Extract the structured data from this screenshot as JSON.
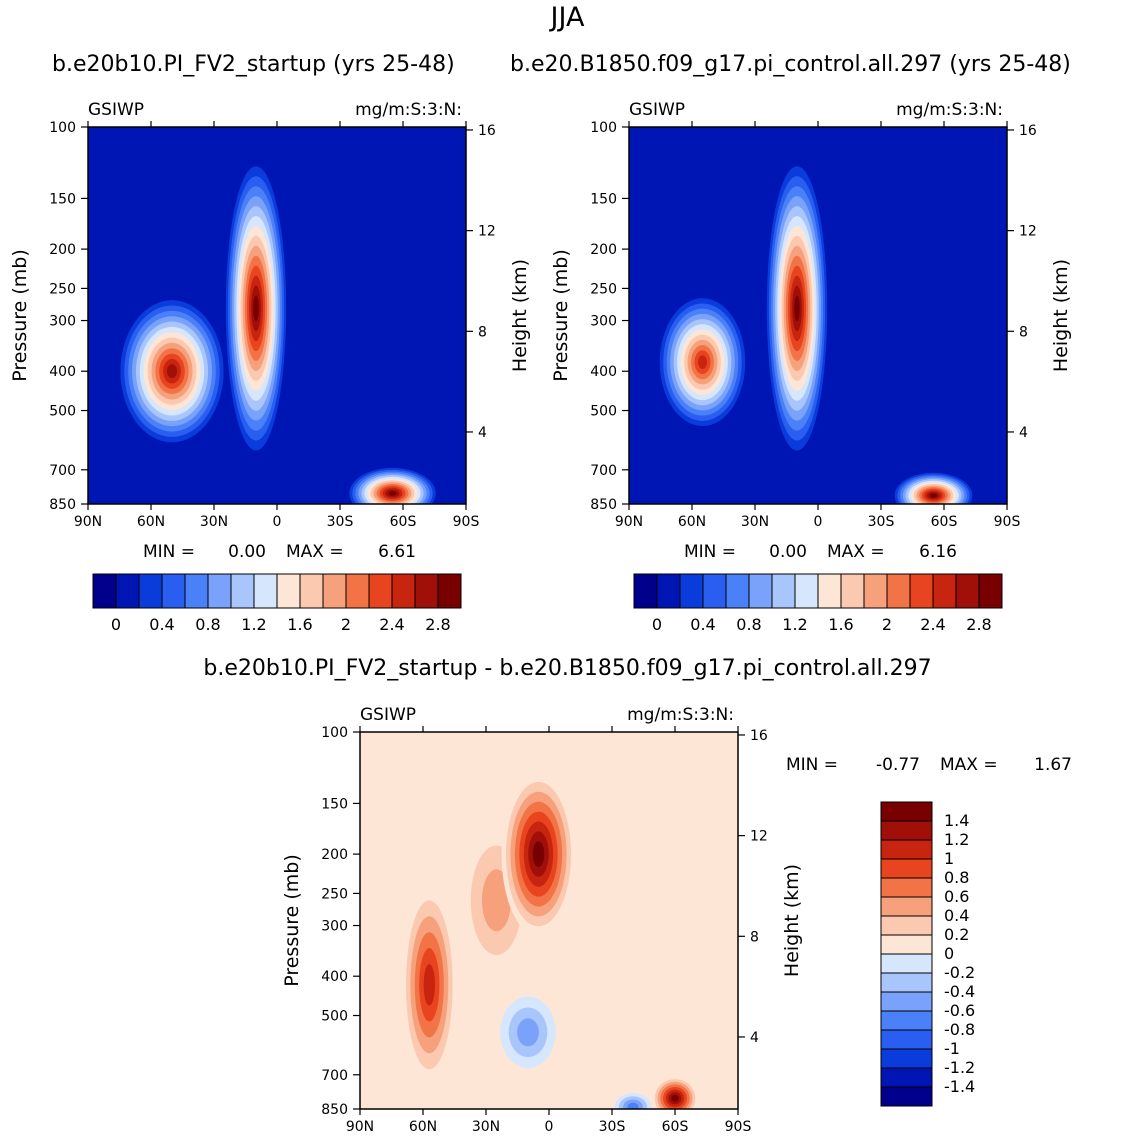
{
  "figure": {
    "title": "JJA",
    "subtitle_left": "b.e20b10.PI_FV2_startup (yrs 25-48)",
    "subtitle_right": "b.e20.B1850.f09_g17.pi_control.all.297 (yrs 25-48)",
    "diff_title": "b.e20b10.PI_FV2_startup - b.e20.B1850.f09_g17.pi_control.all.297"
  },
  "chart_data": [
    {
      "type": "heatmap",
      "name": "panel-left",
      "title": "b.e20b10.PI_FV2_startup (yrs 25-48)",
      "variable": "GSIWP",
      "units": "mg/m:S:3:N:",
      "xlabel": "",
      "ylabel": "Pressure (mb)",
      "ylabel_right": "Height (km)",
      "x_ticks": [
        "90N",
        "60N",
        "30N",
        "0",
        "30S",
        "60S",
        "90S"
      ],
      "y_ticks": [
        "100",
        "150",
        "200",
        "250",
        "300",
        "400",
        "500",
        "700",
        "850"
      ],
      "y_ticks_right": [
        "16",
        "12",
        "8",
        "4"
      ],
      "min_label": "MIN =",
      "min_value": "0.00",
      "max_label": "MAX =",
      "max_value": "6.61",
      "colorbar_ticks": [
        "0",
        "0.4",
        "0.8",
        "1.2",
        "1.6",
        "2",
        "2.4",
        "2.8"
      ],
      "blobs": [
        {
          "lat": 50,
          "p": 400,
          "spread_lat": 12,
          "spread_p": 150,
          "value": 2.8
        },
        {
          "lat": 10,
          "p": 280,
          "spread_lat": 7,
          "spread_p": 200,
          "value": 6.61
        },
        {
          "lat": -55,
          "p": 800,
          "spread_lat": 10,
          "spread_p": 120,
          "value": 3.0
        }
      ]
    },
    {
      "type": "heatmap",
      "name": "panel-right",
      "title": "b.e20.B1850.f09_g17.pi_control.all.297 (yrs 25-48)",
      "variable": "GSIWP",
      "units": "mg/m:S:3:N:",
      "xlabel": "",
      "ylabel": "Pressure (mb)",
      "ylabel_right": "Height (km)",
      "x_ticks": [
        "90N",
        "60N",
        "30N",
        "0",
        "30S",
        "60S",
        "90S"
      ],
      "y_ticks": [
        "100",
        "150",
        "200",
        "250",
        "300",
        "400",
        "500",
        "700",
        "850"
      ],
      "y_ticks_right": [
        "16",
        "12",
        "8",
        "4"
      ],
      "min_label": "MIN =",
      "min_value": "0.00",
      "max_label": "MAX =",
      "max_value": "6.16",
      "colorbar_ticks": [
        "0",
        "0.4",
        "0.8",
        "1.2",
        "1.6",
        "2",
        "2.4",
        "2.8"
      ],
      "blobs": [
        {
          "lat": 55,
          "p": 380,
          "spread_lat": 10,
          "spread_p": 130,
          "value": 2.6
        },
        {
          "lat": 10,
          "p": 280,
          "spread_lat": 7,
          "spread_p": 200,
          "value": 6.16
        },
        {
          "lat": -55,
          "p": 810,
          "spread_lat": 9,
          "spread_p": 110,
          "value": 3.0
        }
      ]
    },
    {
      "type": "heatmap",
      "name": "panel-diff",
      "title": "b.e20b10.PI_FV2_startup - b.e20.B1850.f09_g17.pi_control.all.297",
      "variable": "GSIWP",
      "units": "mg/m:S:3:N:",
      "xlabel": "",
      "ylabel": "Pressure (mb)",
      "ylabel_right": "Height (km)",
      "x_ticks": [
        "90N",
        "60N",
        "30N",
        "0",
        "30S",
        "60S",
        "90S"
      ],
      "y_ticks": [
        "100",
        "150",
        "200",
        "250",
        "300",
        "400",
        "500",
        "700",
        "850"
      ],
      "y_ticks_right": [
        "16",
        "12",
        "8",
        "4"
      ],
      "min_label": "MIN =",
      "min_value": "-0.77",
      "max_label": "MAX =",
      "max_value": "1.67",
      "colorbar_ticks": [
        "1.4",
        "1.2",
        "1",
        "0.8",
        "0.6",
        "0.4",
        "0.2",
        "0",
        "-0.2",
        "-0.4",
        "-0.6",
        "-0.8",
        "-1",
        "-1.2",
        "-1.4"
      ],
      "blobs": [
        {
          "lat": 5,
          "p": 200,
          "spread_lat": 8,
          "spread_p": 80,
          "value": 1.67
        },
        {
          "lat": 57,
          "p": 420,
          "spread_lat": 6,
          "spread_p": 200,
          "value": 1.1
        },
        {
          "lat": -60,
          "p": 800,
          "spread_lat": 5,
          "spread_p": 90,
          "value": 1.5
        },
        {
          "lat": 25,
          "p": 260,
          "spread_lat": 8,
          "spread_p": 100,
          "value": 0.5
        },
        {
          "lat": -40,
          "p": 840,
          "spread_lat": 4,
          "spread_p": 60,
          "value": -0.77
        },
        {
          "lat": 10,
          "p": 550,
          "spread_lat": 6,
          "spread_p": 100,
          "value": -0.5
        }
      ]
    }
  ],
  "colors": {
    "seq_palette": [
      "#00008c",
      "#0016b4",
      "#0a3cdc",
      "#2a5ef0",
      "#4a80f8",
      "#7aa2fa",
      "#a9c6fc",
      "#d6e6fd",
      "#fde6d6",
      "#fbc8b0",
      "#f7a07c",
      "#f27346",
      "#e8441f",
      "#c82510",
      "#a01008",
      "#780000"
    ],
    "div_palette": [
      "#00008c",
      "#0016b4",
      "#0a3cdc",
      "#2a5ef0",
      "#4a80f8",
      "#7aa2fa",
      "#a9c6fc",
      "#d6e6fd",
      "#fde6d6",
      "#fbc8b0",
      "#f7a07c",
      "#f27346",
      "#e8441f",
      "#c82510",
      "#a01008",
      "#780000"
    ],
    "diff_background": "#fde6d6"
  }
}
